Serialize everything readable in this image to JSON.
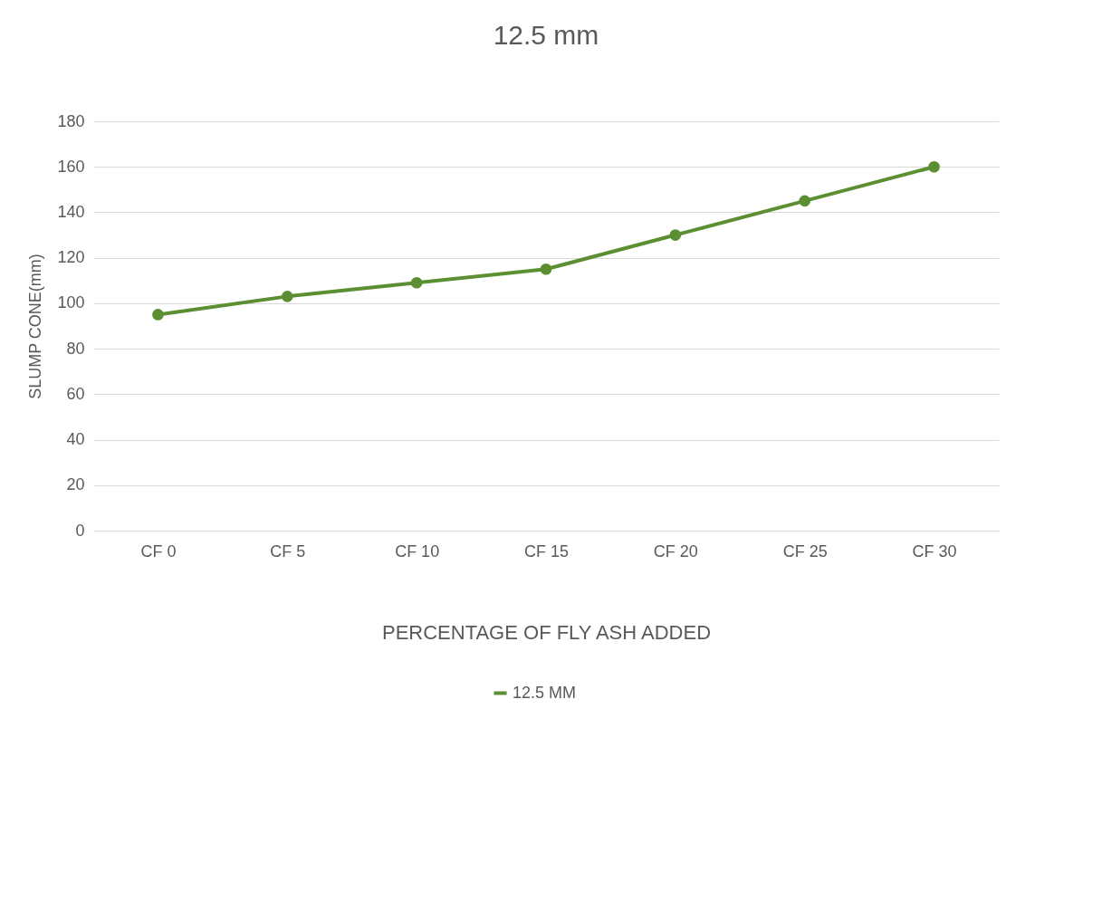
{
  "chart_data": {
    "type": "line",
    "title": "12.5 mm",
    "xlabel": "PERCENTAGE OF FLY ASH ADDED",
    "ylabel": "SLUMP CONE(mm)",
    "categories": [
      "CF 0",
      "CF 5",
      "CF  10",
      "CF 15",
      "CF 20",
      "CF 25",
      "CF 30"
    ],
    "series": [
      {
        "name": "12.5 MM",
        "color": "#5b8f32",
        "values": [
          95,
          103,
          109,
          115,
          130,
          145,
          160
        ]
      }
    ],
    "ylim": [
      0,
      180
    ],
    "yticks": [
      0,
      20,
      40,
      60,
      80,
      100,
      120,
      140,
      160,
      180
    ],
    "grid": "y",
    "legend": "bottom",
    "marker": "circle",
    "line_style": "solid"
  }
}
